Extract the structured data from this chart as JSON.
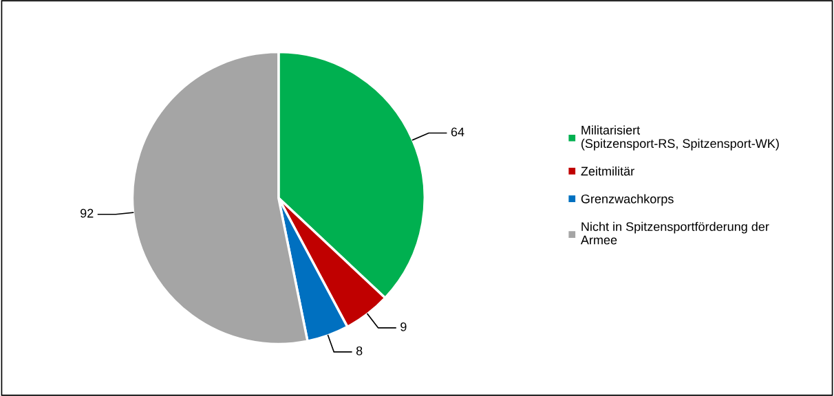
{
  "chart_data": {
    "type": "pie",
    "categories": [
      "Militarisiert\n(Spitzensport-RS, Spitzensport-WK)",
      "Zeitmilitär",
      "Grenzwachkorps",
      "Nicht in Spitzensportförderung der\nArmee"
    ],
    "values": [
      64,
      9,
      8,
      92
    ],
    "colors": [
      "#00b050",
      "#c00000",
      "#0070c0",
      "#a5a5a5"
    ],
    "data_labels": true,
    "legend": "right"
  }
}
